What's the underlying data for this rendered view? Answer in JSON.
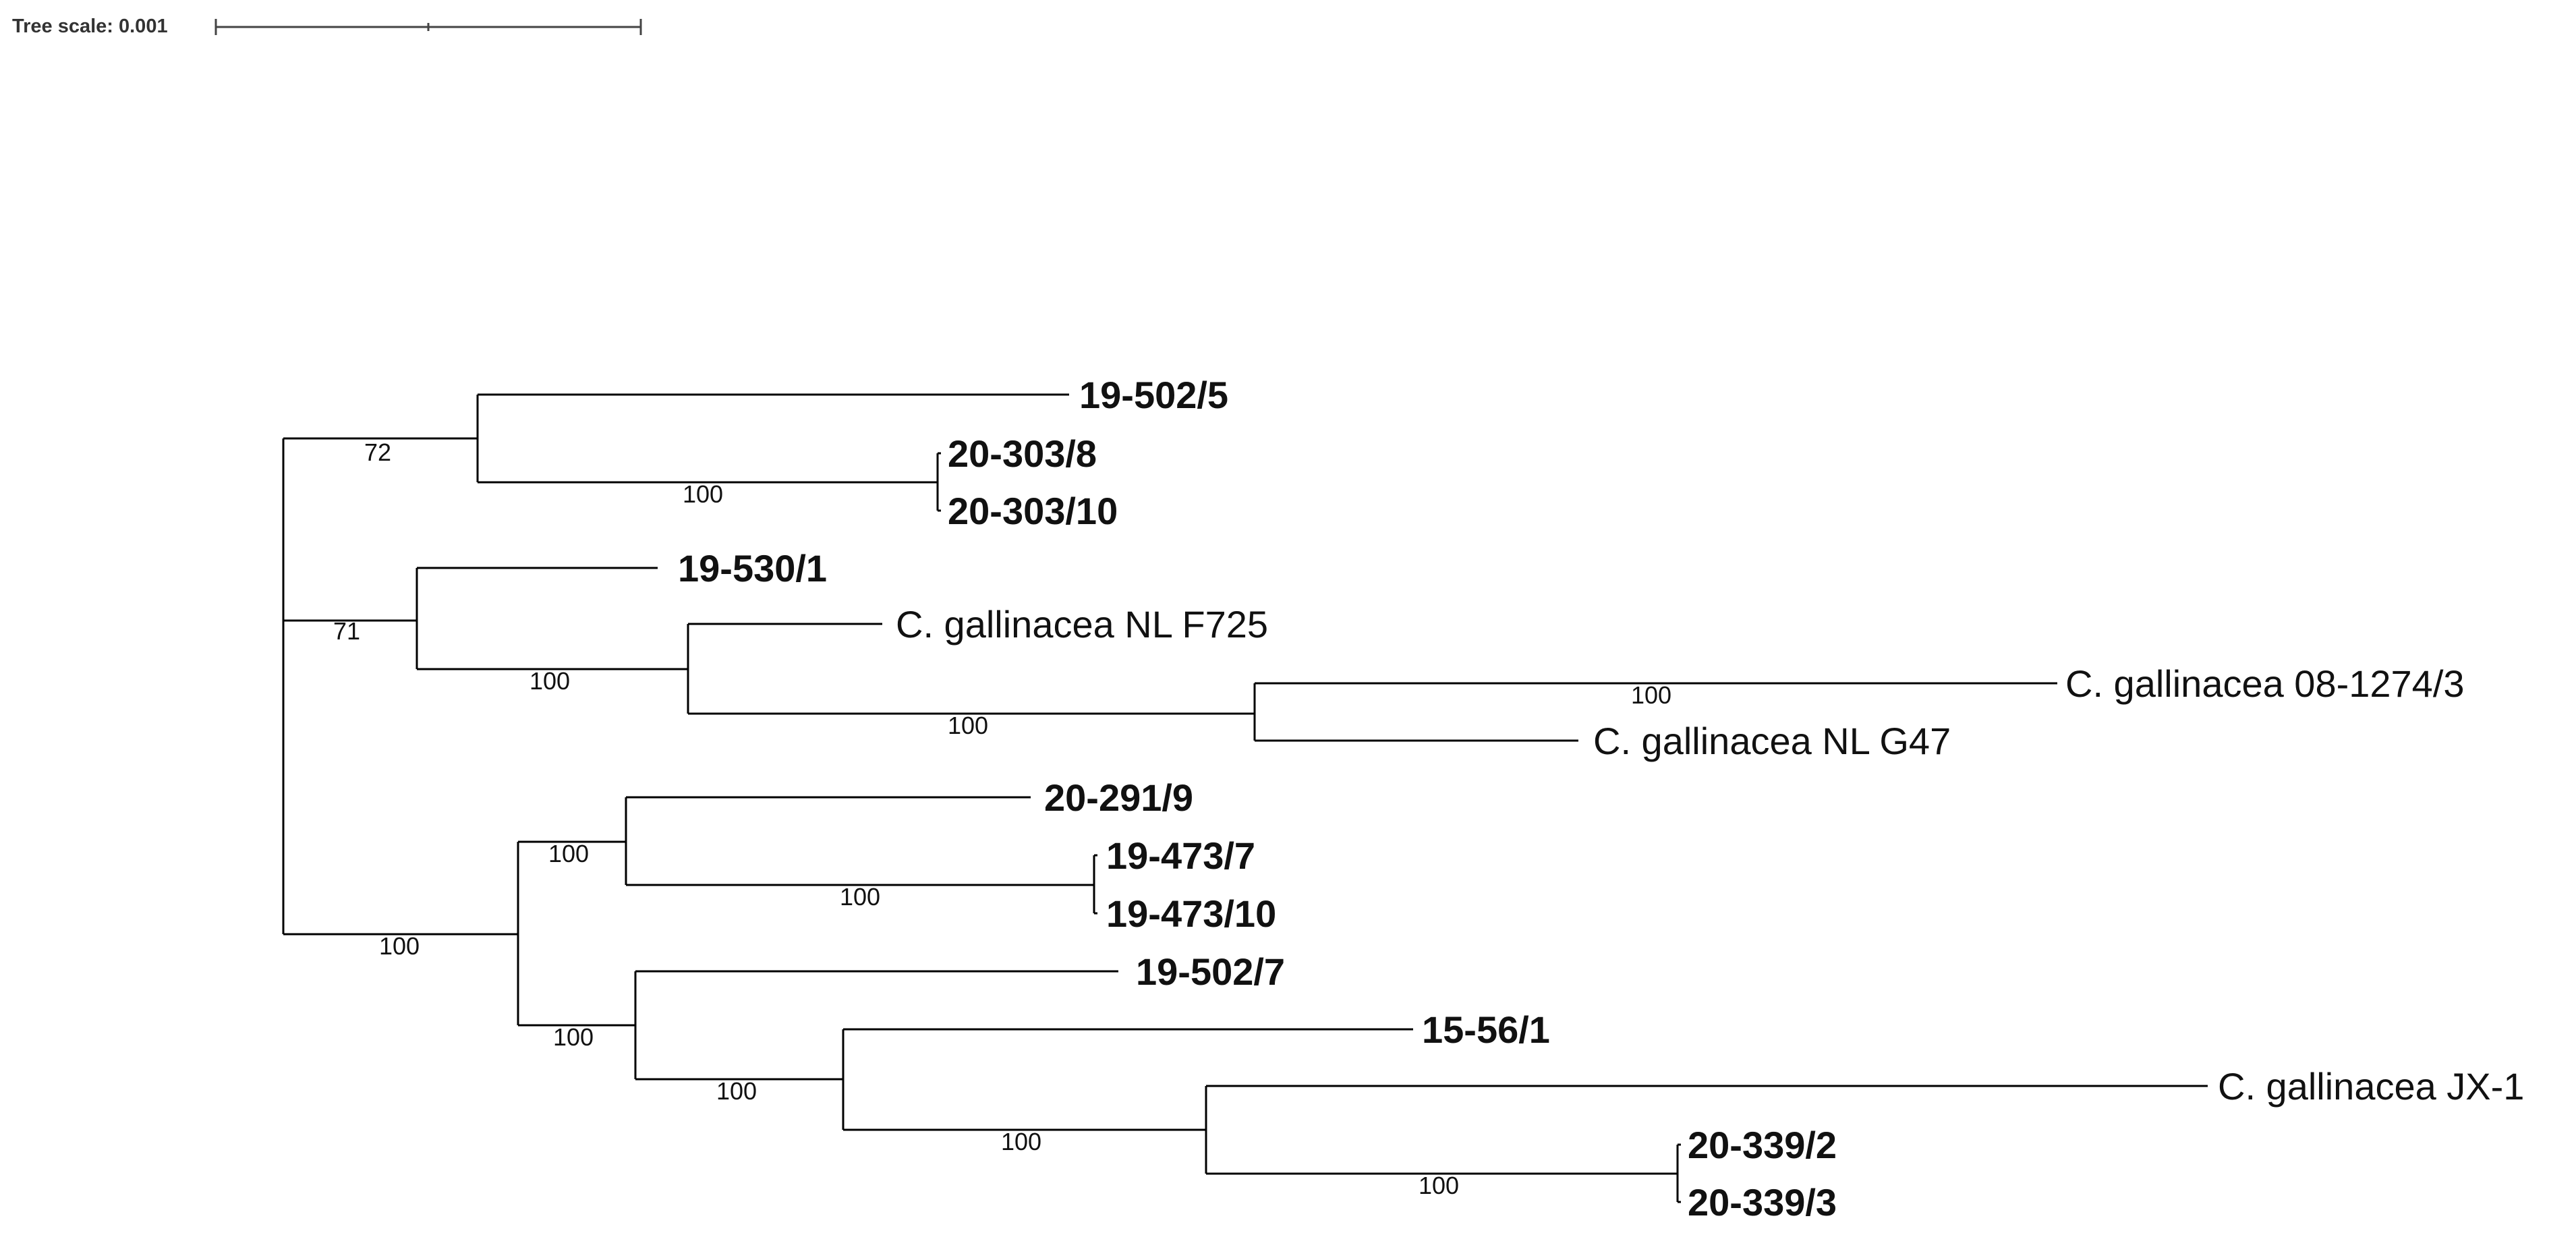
{
  "scale": {
    "label": "Tree scale: 0.001"
  },
  "leaves": [
    {
      "label": "19-502/5",
      "style": "bold"
    },
    {
      "label": "20-303/8",
      "style": "bold"
    },
    {
      "label": "20-303/10",
      "style": "bold"
    },
    {
      "label": "19-530/1",
      "style": "bold"
    },
    {
      "label": "C. gallinacea NL F725",
      "style": "normal"
    },
    {
      "label": "C. gallinacea 08-1274/3",
      "style": "normal"
    },
    {
      "label": "C. gallinacea NL G47",
      "style": "normal"
    },
    {
      "label": "20-291/9",
      "style": "bold"
    },
    {
      "label": "19-473/7",
      "style": "bold"
    },
    {
      "label": "19-473/10",
      "style": "bold"
    },
    {
      "label": "19-502/7",
      "style": "bold"
    },
    {
      "label": "15-56/1",
      "style": "bold"
    },
    {
      "label": "C. gallinacea JX-1",
      "style": "normal"
    },
    {
      "label": "20-339/2",
      "style": "bold"
    },
    {
      "label": "20-339/3",
      "style": "bold"
    }
  ],
  "supports": [
    "72",
    "100",
    "71",
    "100",
    "100",
    "100",
    "100",
    "100",
    "100",
    "100",
    "100",
    "100",
    "100"
  ]
}
